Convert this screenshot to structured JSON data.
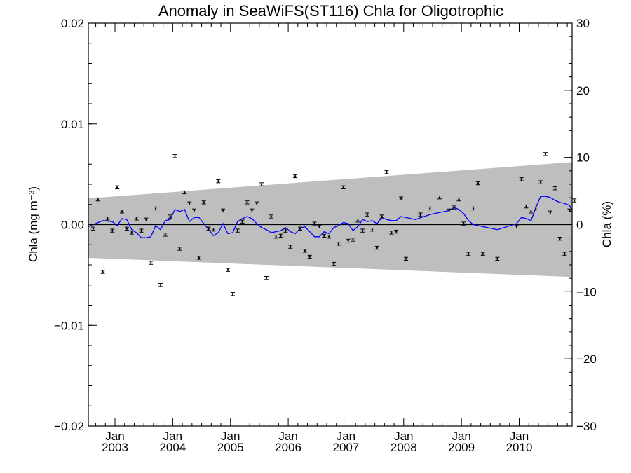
{
  "chart_data": {
    "type": "scatter",
    "title": "Anomaly in SeaWiFS(ST116) Chla for Oligotrophic",
    "ylabel_left": "Chla (mg m⁻³)",
    "ylabel_right": "Chla (%)",
    "xlabel": "",
    "xlim": [
      "2002-07-15",
      "2010-12-01"
    ],
    "ylim_left": [
      -0.02,
      0.02
    ],
    "ylim_right": [
      -30,
      30
    ],
    "left_ticks": [
      "-0.02",
      "-0.01",
      "0.00",
      "0.01",
      "0.02"
    ],
    "right_ticks": [
      "-30",
      "-20",
      "-10",
      "0",
      "10",
      "20",
      "30"
    ],
    "x_tick_month_label": "Jan",
    "x_tick_years": [
      "2003",
      "2004",
      "2005",
      "2006",
      "2007",
      "2008",
      "2009",
      "2010"
    ],
    "band": {
      "start": "2002-07-15",
      "end": "2010-12-01",
      "upper_start": 0.0026,
      "upper_end": 0.0062,
      "lower_start": -0.0033,
      "lower_end": -0.0052
    },
    "series": [
      {
        "kind": "monthly_anomaly_points",
        "x": [
          "2002-08",
          "2002-09",
          "2002-10",
          "2002-11",
          "2002-12",
          "2003-01",
          "2003-02",
          "2003-03",
          "2003-04",
          "2003-05",
          "2003-06",
          "2003-07",
          "2003-08",
          "2003-09",
          "2003-10",
          "2003-11",
          "2003-12",
          "2004-01",
          "2004-02",
          "2004-03",
          "2004-04",
          "2004-05",
          "2004-06",
          "2004-07",
          "2004-08",
          "2004-09",
          "2004-10",
          "2004-11",
          "2004-12",
          "2005-01",
          "2005-02",
          "2005-03",
          "2005-04",
          "2005-05",
          "2005-06",
          "2005-07",
          "2005-08",
          "2005-09",
          "2005-10",
          "2005-11",
          "2005-12",
          "2006-01",
          "2006-02",
          "2006-03",
          "2006-04",
          "2006-05",
          "2006-06",
          "2006-07",
          "2006-08",
          "2006-09",
          "2006-10",
          "2006-11",
          "2006-12",
          "2007-01",
          "2007-02",
          "2007-03",
          "2007-04",
          "2007-05",
          "2007-06",
          "2007-07",
          "2007-08",
          "2007-09",
          "2007-10",
          "2007-11",
          "2007-12",
          "2008-01",
          "2008-04",
          "2008-06",
          "2008-08",
          "2008-10",
          "2008-11",
          "2008-12",
          "2009-01",
          "2009-02",
          "2009-03",
          "2009-04",
          "2009-05",
          "2009-08",
          "2009-12",
          "2010-01",
          "2010-02",
          "2010-03",
          "2010-04",
          "2010-05",
          "2010-06",
          "2010-07",
          "2010-08",
          "2010-09",
          "2010-10",
          "2010-11",
          "2010-12"
        ],
        "y": [
          -0.0004,
          0.0025,
          -0.0047,
          0.0006,
          -0.0006,
          0.0037,
          0.0013,
          -0.0004,
          -0.0008,
          0.0006,
          -0.0006,
          0.0005,
          -0.0038,
          0.0016,
          -0.006,
          -0.001,
          0.0008,
          0.0068,
          -0.0024,
          0.0032,
          0.0021,
          0.0014,
          -0.0033,
          0.0022,
          -0.0004,
          -0.0005,
          0.0043,
          0.0014,
          -0.0045,
          -0.0069,
          -0.0006,
          0.0003,
          0.0022,
          0.0014,
          0.0021,
          0.004,
          -0.0053,
          0.0008,
          -0.0012,
          -0.0011,
          -0.0006,
          -0.0022,
          0.0048,
          -0.0004,
          -0.0026,
          -0.0032,
          0.0001,
          -0.0002,
          -0.0011,
          -0.0012,
          -0.0039,
          -0.0019,
          0.0037,
          -0.0016,
          -0.0015,
          0.0004,
          -0.0006,
          0.001,
          -0.0005,
          -0.0023,
          0.0008,
          0.0052,
          -0.0008,
          -0.0007,
          0.0026,
          -0.0034,
          0.001,
          0.0016,
          0.0027,
          0.0014,
          0.0017,
          0.0025,
          0.0001,
          -0.0029,
          0.0016,
          0.0041,
          -0.0029,
          -0.0034,
          -0.0002,
          0.0045,
          0.0018,
          0.0013,
          0.0016,
          0.0042,
          0.007,
          0.0012,
          0.0036,
          -0.0014,
          -0.0029,
          0.0014,
          0.0024
        ],
        "error": 0.00015
      },
      {
        "kind": "running_mean",
        "color": "#0000ff",
        "x": [
          "2002-07-15",
          "2002-09",
          "2002-10",
          "2002-12",
          "2003-01",
          "2003-02",
          "2003-03",
          "2003-04",
          "2003-05",
          "2003-06",
          "2003-07",
          "2003-08",
          "2003-09",
          "2003-10",
          "2003-11",
          "2003-12",
          "2004-01",
          "2004-02",
          "2004-03",
          "2004-04",
          "2004-05",
          "2004-06",
          "2004-07",
          "2004-08",
          "2004-09",
          "2004-10",
          "2004-11",
          "2004-12",
          "2005-01",
          "2005-02",
          "2005-03",
          "2005-04",
          "2005-05",
          "2005-06",
          "2005-07",
          "2005-08",
          "2005-09",
          "2005-10",
          "2005-11",
          "2005-12",
          "2006-01",
          "2006-02",
          "2006-03",
          "2006-04",
          "2006-05",
          "2006-06",
          "2006-07",
          "2006-08",
          "2006-09",
          "2006-10",
          "2006-11",
          "2006-12",
          "2007-01",
          "2007-02",
          "2007-03",
          "2007-04",
          "2007-05",
          "2007-06",
          "2007-07",
          "2007-08",
          "2007-09",
          "2007-10",
          "2007-11",
          "2007-12",
          "2008-01",
          "2008-03",
          "2008-06",
          "2008-08",
          "2008-10",
          "2008-11",
          "2008-12",
          "2009-01",
          "2009-02",
          "2009-03",
          "2009-08",
          "2009-12",
          "2010-01",
          "2010-02",
          "2010-03",
          "2010-04",
          "2010-05",
          "2010-06",
          "2010-07",
          "2010-08",
          "2010-09",
          "2010-10",
          "2010-11",
          "2010-12-01"
        ],
        "y": [
          -0.0002,
          0.0002,
          0.0004,
          0.0003,
          -0.0001,
          0.0006,
          0.0005,
          -0.0005,
          -0.0008,
          -0.0013,
          -0.0013,
          -0.0012,
          -0.0001,
          -0.0005,
          0.0004,
          0.0005,
          0.0015,
          0.0013,
          0.0015,
          0.0003,
          0.0007,
          0.0007,
          0.0001,
          -0.0005,
          -0.0011,
          -0.0008,
          0.0001,
          -0.0009,
          -0.0008,
          0.0003,
          0.0006,
          0.0008,
          0.0006,
          0.0001,
          -0.0003,
          -0.0005,
          -0.0008,
          -0.0007,
          -0.0006,
          -0.0003,
          -0.0007,
          -0.0009,
          -0.0004,
          -0.0002,
          -0.0007,
          -0.0012,
          -0.0012,
          -0.0007,
          -0.0009,
          -0.0003,
          -0.0001,
          0.0002,
          0.0001,
          -0.0006,
          -0.0002,
          0.0005,
          0.0003,
          0.0004,
          0.0001,
          0.0007,
          0.0005,
          0.0004,
          0.0004,
          0.0008,
          0.0007,
          0.0005,
          0.001,
          0.0012,
          0.0014,
          0.0017,
          0.0015,
          0.0011,
          0.0004,
          0.0,
          -0.0005,
          0.0001,
          0.0007,
          0.0006,
          0.0004,
          0.0017,
          0.0028,
          0.0028,
          0.0027,
          0.0024,
          0.0022,
          0.0021,
          0.0019,
          0.0014
        ]
      },
      {
        "kind": "zero_line",
        "color": "#000000",
        "y": 0
      }
    ]
  }
}
